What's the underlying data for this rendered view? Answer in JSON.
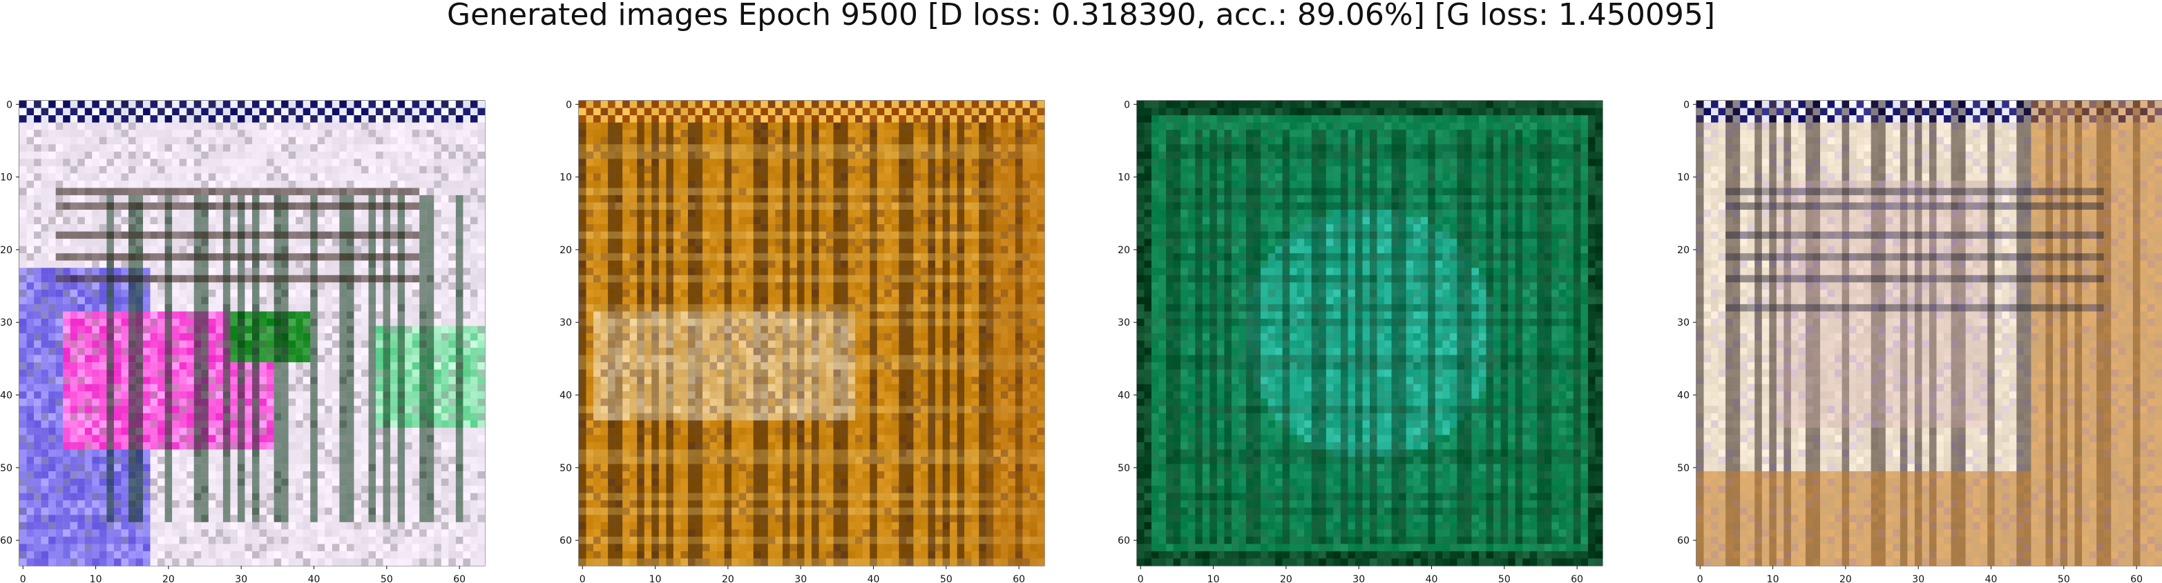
{
  "title": "Generated images Epoch 9500 [D loss: 0.318390, acc.: 89.06%] [G loss: 1.450095]",
  "panels": [
    {
      "name": "generated-image-1",
      "description_palette": [
        "#f2e7f5",
        "#4433e8",
        "#ff39d9",
        "#0c3a1a",
        "#2e1b10"
      ],
      "x_ticks": [
        "0",
        "10",
        "20",
        "30",
        "40",
        "50",
        "60"
      ],
      "y_ticks": [
        "0",
        "10",
        "20",
        "30",
        "40",
        "50",
        "60"
      ]
    },
    {
      "name": "generated-image-2",
      "description_palette": [
        "#d08b16",
        "#e3bb62",
        "#b56a12",
        "#f2e7d0",
        "#2d1304"
      ],
      "x_ticks": [
        "0",
        "10",
        "20",
        "30",
        "40",
        "50",
        "60"
      ],
      "y_ticks": [
        "0",
        "10",
        "20",
        "30",
        "40",
        "50",
        "60"
      ]
    },
    {
      "name": "generated-image-3",
      "description_palette": [
        "#0d6f2c",
        "#19b49b",
        "#39d8d0",
        "#0a3a1e",
        "#083d22"
      ],
      "x_ticks": [
        "0",
        "10",
        "20",
        "30",
        "40",
        "50",
        "60"
      ],
      "y_ticks": [
        "0",
        "10",
        "20",
        "30",
        "40",
        "50",
        "60"
      ]
    },
    {
      "name": "generated-image-4",
      "description_palette": [
        "#f0e3cf",
        "#c77c24",
        "#d6b0b4",
        "#1d0f0a",
        "#6a5ac8"
      ],
      "x_ticks": [
        "0",
        "10",
        "20",
        "30",
        "40",
        "50",
        "60"
      ],
      "y_ticks": [
        "0",
        "10",
        "20",
        "30",
        "40",
        "50",
        "60"
      ]
    }
  ]
}
